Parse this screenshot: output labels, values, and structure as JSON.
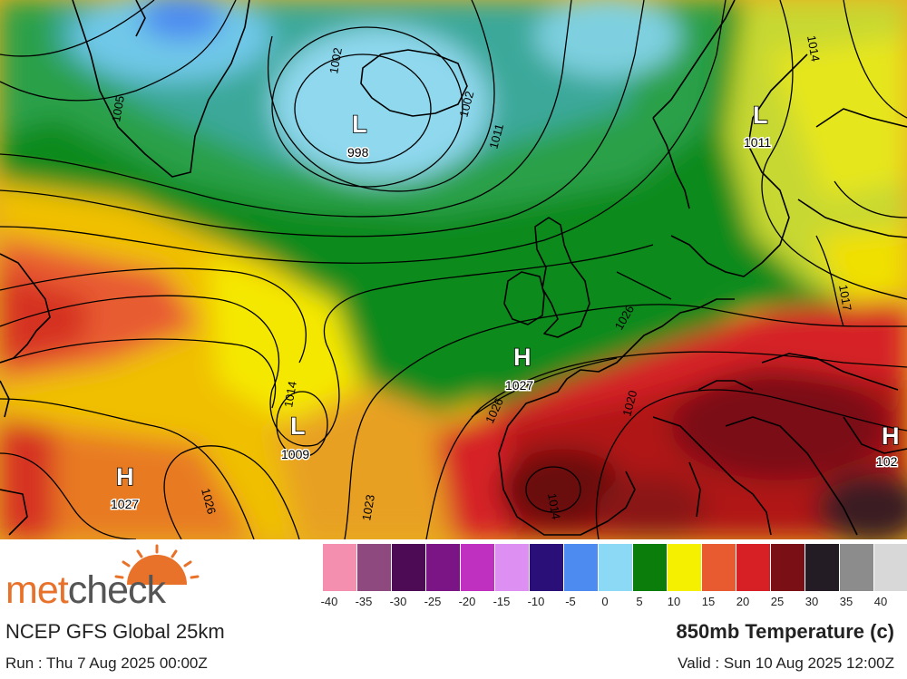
{
  "map": {
    "pressure_centers": [
      {
        "type": "L",
        "value": "998"
      },
      {
        "type": "L",
        "value": "1011"
      },
      {
        "type": "H",
        "value": "1027"
      },
      {
        "type": "L",
        "value": "1009"
      },
      {
        "type": "H",
        "value": "1027"
      },
      {
        "type": "H",
        "value": "102"
      }
    ],
    "isobar_labels": [
      "1002",
      "1005",
      "1002",
      "1011",
      "1014",
      "1014",
      "1026",
      "1026",
      "1020",
      "1023",
      "1026",
      "1014",
      "1017"
    ]
  },
  "logo": {
    "part1": "met",
    "part2": "check"
  },
  "legend": {
    "ticks": [
      "-40",
      "-35",
      "-30",
      "-25",
      "-20",
      "-15",
      "-10",
      "-5",
      "0",
      "5",
      "10",
      "15",
      "20",
      "25",
      "30",
      "35",
      "40"
    ],
    "colors": [
      "#f58fb0",
      "#8e4a7e",
      "#4d0a55",
      "#7b1585",
      "#c030c0",
      "#dd90f2",
      "#2a0f78",
      "#4d8bf0",
      "#8bd9f5",
      "#0a7d0a",
      "#f5f000",
      "#e85b30",
      "#d62025",
      "#7a1015",
      "#241c24",
      "#8c8c8c",
      "#d8d8d8"
    ]
  },
  "footer": {
    "model": "NCEP GFS Global 25km",
    "parameter": "850mb Temperature (c)",
    "run": "Run : Thu 7 Aug 2025 00:00Z",
    "valid": "Valid : Sun 10 Aug 2025 12:00Z"
  }
}
